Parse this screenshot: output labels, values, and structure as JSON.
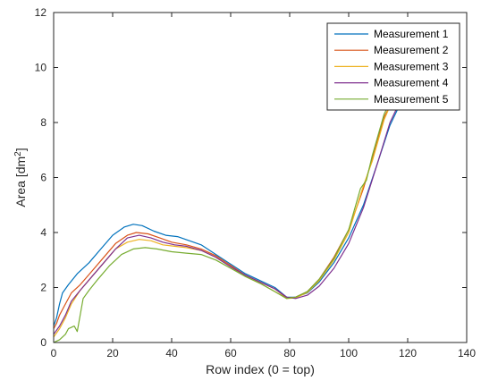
{
  "chart_data": {
    "type": "line",
    "title": "",
    "xlabel": "Row index (0 = top)",
    "ylabel": "Area [dm",
    "ylabel_superscript": "2",
    "ylabel_suffix": "]",
    "xlim": [
      0,
      140
    ],
    "ylim": [
      0,
      12
    ],
    "xticks": [
      0,
      20,
      40,
      60,
      80,
      100,
      120,
      140
    ],
    "yticks": [
      0,
      2,
      4,
      6,
      8,
      10,
      12
    ],
    "grid": false,
    "legend_position": "top-right",
    "series": [
      {
        "name": "Measurement 1",
        "color": "#0072BD",
        "points": [
          [
            0,
            0.6
          ],
          [
            1,
            0.9
          ],
          [
            2,
            1.4
          ],
          [
            3,
            1.8
          ],
          [
            5,
            2.1
          ],
          [
            8,
            2.5
          ],
          [
            12,
            2.9
          ],
          [
            16,
            3.4
          ],
          [
            20,
            3.9
          ],
          [
            24,
            4.2
          ],
          [
            27,
            4.3
          ],
          [
            30,
            4.25
          ],
          [
            34,
            4.05
          ],
          [
            38,
            3.9
          ],
          [
            42,
            3.85
          ],
          [
            46,
            3.7
          ],
          [
            50,
            3.55
          ],
          [
            55,
            3.2
          ],
          [
            60,
            2.85
          ],
          [
            65,
            2.5
          ],
          [
            70,
            2.25
          ],
          [
            75,
            2.0
          ],
          [
            79,
            1.65
          ],
          [
            82,
            1.65
          ],
          [
            86,
            1.8
          ],
          [
            90,
            2.2
          ],
          [
            95,
            2.9
          ],
          [
            100,
            3.8
          ],
          [
            105,
            5.0
          ],
          [
            110,
            6.6
          ],
          [
            114,
            7.9
          ],
          [
            118,
            8.8
          ],
          [
            122,
            9.3
          ]
        ]
      },
      {
        "name": "Measurement 2",
        "color": "#D95319",
        "points": [
          [
            0,
            0.5
          ],
          [
            1,
            0.7
          ],
          [
            2,
            1.0
          ],
          [
            4,
            1.4
          ],
          [
            6,
            1.8
          ],
          [
            9,
            2.1
          ],
          [
            13,
            2.6
          ],
          [
            17,
            3.1
          ],
          [
            21,
            3.6
          ],
          [
            25,
            3.9
          ],
          [
            28,
            4.0
          ],
          [
            32,
            3.95
          ],
          [
            36,
            3.8
          ],
          [
            40,
            3.65
          ],
          [
            45,
            3.55
          ],
          [
            50,
            3.4
          ],
          [
            55,
            3.15
          ],
          [
            60,
            2.8
          ],
          [
            65,
            2.45
          ],
          [
            70,
            2.2
          ],
          [
            75,
            1.95
          ],
          [
            79,
            1.62
          ],
          [
            82,
            1.65
          ],
          [
            86,
            1.85
          ],
          [
            90,
            2.3
          ],
          [
            95,
            3.1
          ],
          [
            100,
            4.1
          ],
          [
            105,
            5.6
          ],
          [
            108,
            6.7
          ],
          [
            112,
            8.2
          ],
          [
            116,
            9.0
          ],
          [
            120,
            9.4
          ]
        ]
      },
      {
        "name": "Measurement 3",
        "color": "#EDB120",
        "points": [
          [
            0,
            0.2
          ],
          [
            2,
            0.5
          ],
          [
            4,
            0.9
          ],
          [
            6,
            1.4
          ],
          [
            9,
            1.9
          ],
          [
            13,
            2.4
          ],
          [
            17,
            2.9
          ],
          [
            21,
            3.4
          ],
          [
            25,
            3.65
          ],
          [
            29,
            3.75
          ],
          [
            33,
            3.7
          ],
          [
            37,
            3.55
          ],
          [
            41,
            3.5
          ],
          [
            45,
            3.45
          ],
          [
            50,
            3.35
          ],
          [
            55,
            3.1
          ],
          [
            60,
            2.75
          ],
          [
            65,
            2.4
          ],
          [
            70,
            2.15
          ],
          [
            75,
            1.85
          ],
          [
            79,
            1.6
          ],
          [
            82,
            1.62
          ],
          [
            86,
            1.82
          ],
          [
            90,
            2.25
          ],
          [
            95,
            3.0
          ],
          [
            100,
            4.0
          ],
          [
            105,
            5.7
          ],
          [
            108,
            6.6
          ],
          [
            112,
            8.1
          ],
          [
            116,
            9.1
          ],
          [
            120,
            9.5
          ]
        ]
      },
      {
        "name": "Measurement 4",
        "color": "#7E2F8E",
        "points": [
          [
            0,
            0.3
          ],
          [
            2,
            0.6
          ],
          [
            4,
            1.0
          ],
          [
            6,
            1.5
          ],
          [
            9,
            1.9
          ],
          [
            13,
            2.4
          ],
          [
            17,
            2.9
          ],
          [
            21,
            3.4
          ],
          [
            25,
            3.8
          ],
          [
            29,
            3.9
          ],
          [
            33,
            3.8
          ],
          [
            37,
            3.65
          ],
          [
            41,
            3.55
          ],
          [
            45,
            3.5
          ],
          [
            50,
            3.35
          ],
          [
            55,
            3.1
          ],
          [
            60,
            2.75
          ],
          [
            65,
            2.45
          ],
          [
            70,
            2.2
          ],
          [
            75,
            1.95
          ],
          [
            79,
            1.65
          ],
          [
            82,
            1.6
          ],
          [
            86,
            1.72
          ],
          [
            90,
            2.05
          ],
          [
            95,
            2.7
          ],
          [
            100,
            3.6
          ],
          [
            105,
            4.9
          ],
          [
            110,
            6.6
          ],
          [
            114,
            8.0
          ],
          [
            118,
            8.9
          ],
          [
            122,
            9.4
          ]
        ]
      },
      {
        "name": "Measurement 5",
        "color": "#77AC30",
        "points": [
          [
            0,
            0.0
          ],
          [
            2,
            0.1
          ],
          [
            4,
            0.3
          ],
          [
            5,
            0.5
          ],
          [
            7,
            0.6
          ],
          [
            8,
            0.4
          ],
          [
            9,
            1.0
          ],
          [
            10,
            1.6
          ],
          [
            12,
            1.9
          ],
          [
            15,
            2.3
          ],
          [
            19,
            2.8
          ],
          [
            23,
            3.2
          ],
          [
            27,
            3.4
          ],
          [
            31,
            3.45
          ],
          [
            35,
            3.4
          ],
          [
            40,
            3.3
          ],
          [
            45,
            3.25
          ],
          [
            50,
            3.2
          ],
          [
            55,
            3.0
          ],
          [
            60,
            2.7
          ],
          [
            65,
            2.4
          ],
          [
            70,
            2.15
          ],
          [
            75,
            1.85
          ],
          [
            79,
            1.6
          ],
          [
            82,
            1.65
          ],
          [
            86,
            1.85
          ],
          [
            90,
            2.3
          ],
          [
            95,
            3.05
          ],
          [
            100,
            4.1
          ],
          [
            104,
            5.6
          ],
          [
            106,
            5.9
          ],
          [
            108,
            6.8
          ],
          [
            112,
            8.3
          ],
          [
            116,
            9.2
          ],
          [
            120,
            9.6
          ]
        ]
      }
    ]
  }
}
